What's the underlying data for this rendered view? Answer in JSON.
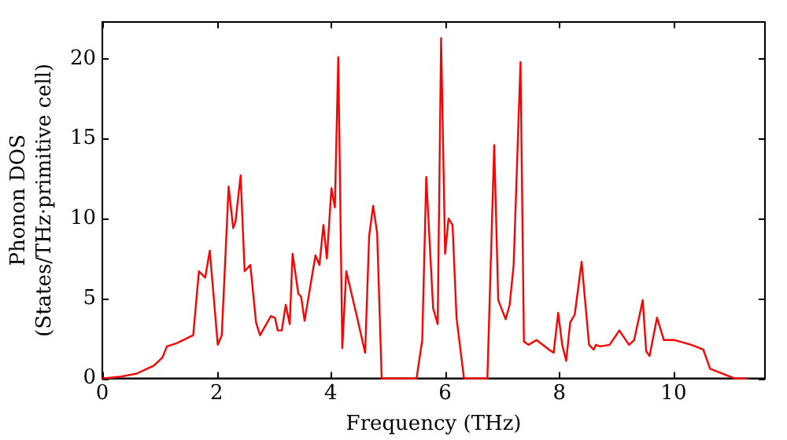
{
  "chart_data": {
    "type": "line",
    "xlabel": "Frequency (THz)",
    "ylabel": "Phonon DOS\n(States/THz·primitive cell)",
    "xlim": [
      0,
      11.6
    ],
    "ylim": [
      0,
      22.3
    ],
    "xticks": [
      0,
      2,
      4,
      6,
      8,
      10
    ],
    "yticks": [
      0,
      5,
      10,
      15,
      20
    ],
    "grid": false,
    "legend": false,
    "marker": "none",
    "line_style": "solid",
    "series": [
      {
        "color": "#ff0000",
        "x": [
          0,
          0.3,
          0.6,
          0.9,
          1.05,
          1.13,
          1.3,
          1.59,
          1.69,
          1.8,
          1.88,
          2.02,
          2.09,
          2.21,
          2.29,
          2.33,
          2.42,
          2.49,
          2.59,
          2.69,
          2.76,
          2.95,
          3.02,
          3.07,
          3.14,
          3.21,
          3.28,
          3.33,
          3.43,
          3.48,
          3.54,
          3.73,
          3.8,
          3.87,
          3.93,
          4.01,
          4.07,
          4.13,
          4.2,
          4.27,
          4.46,
          4.6,
          4.67,
          4.74,
          4.81,
          4.89,
          5.5,
          5.6,
          5.67,
          5.79,
          5.87,
          5.93,
          6.0,
          6.06,
          6.13,
          6.2,
          6.33,
          6.74,
          6.86,
          6.93,
          7.06,
          7.13,
          7.2,
          7.32,
          7.38,
          7.46,
          7.6,
          7.82,
          7.9,
          7.98,
          8.05,
          8.12,
          8.19,
          8.27,
          8.39,
          8.52,
          8.6,
          8.64,
          8.71,
          8.88,
          9.05,
          9.22,
          9.31,
          9.46,
          9.52,
          9.58,
          9.65,
          9.71,
          9.83,
          10.02,
          10.31,
          10.52,
          10.64,
          11.07,
          11.3
        ],
        "values": [
          0,
          0.1,
          0.3,
          0.8,
          1.3,
          2.0,
          2.2,
          2.7,
          6.7,
          6.3,
          8.0,
          2.1,
          2.7,
          12.0,
          9.4,
          9.8,
          12.7,
          6.7,
          7.1,
          3.5,
          2.7,
          3.9,
          3.8,
          3.0,
          3.0,
          4.6,
          3.4,
          7.8,
          5.3,
          5.1,
          3.6,
          7.7,
          7.1,
          9.6,
          7.5,
          11.9,
          10.7,
          20.1,
          1.9,
          6.7,
          3.8,
          1.6,
          8.9,
          10.8,
          9.1,
          0,
          0,
          2.4,
          12.6,
          4.4,
          3.4,
          21.3,
          7.8,
          10.0,
          9.6,
          3.8,
          0,
          0,
          14.6,
          4.9,
          3.7,
          4.6,
          7.1,
          19.8,
          2.3,
          2.1,
          2.4,
          1.8,
          1.6,
          4.1,
          2.1,
          1.1,
          3.5,
          4.0,
          7.3,
          2.1,
          1.8,
          2.1,
          2.0,
          2.1,
          3.0,
          2.1,
          2.4,
          4.9,
          1.7,
          1.4,
          2.7,
          3.8,
          2.4,
          2.4,
          2.1,
          1.8,
          0.6,
          0,
          0
        ]
      }
    ]
  }
}
